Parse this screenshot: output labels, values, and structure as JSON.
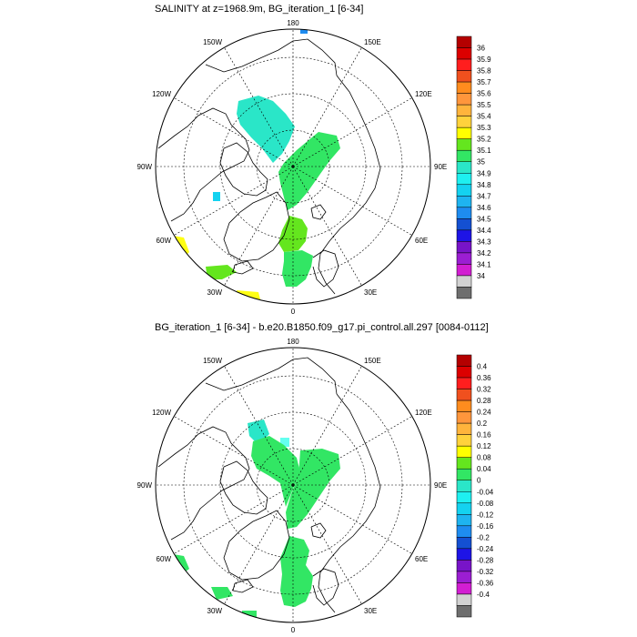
{
  "panels": [
    {
      "title": "SALINITY at z=1968.9m, BG_iteration_1 [6-34]",
      "colorbar_labels": [
        "36",
        "35.9",
        "35.8",
        "35.7",
        "35.6",
        "35.5",
        "35.4",
        "35.3",
        "35.2",
        "35.1",
        "35",
        "34.9",
        "34.8",
        "34.7",
        "34.6",
        "34.5",
        "34.4",
        "34.3",
        "34.2",
        "34.1",
        "34"
      ]
    },
    {
      "title": "BG_iteration_1 [6-34] - b.e20.B1850.f09_g17.pi_control.all.297 [0084-0112]",
      "colorbar_labels": [
        "0.4",
        "0.36",
        "0.32",
        "0.28",
        "0.24",
        "0.2",
        "0.16",
        "0.12",
        "0.08",
        "0.04",
        "0",
        "-0.04",
        "-0.08",
        "-0.12",
        "-0.16",
        "-0.2",
        "-0.24",
        "-0.28",
        "-0.32",
        "-0.36",
        "-0.4"
      ]
    }
  ],
  "longitude_labels": {
    "top": "180",
    "bottom": "0",
    "left": "90W",
    "right": "90E",
    "upper_left_far": "150W",
    "upper_left_near": "120W",
    "upper_right_far": "150E",
    "upper_right_near": "120E",
    "lower_left_near": "60W",
    "lower_left_far": "30W",
    "lower_right_near": "60E",
    "lower_right_far": "30E"
  },
  "colorbar_colors": [
    "#6e6e6e",
    "#d2d2d2",
    "#d21ed2",
    "#9b1ed2",
    "#7814c8",
    "#1e14e6",
    "#1450d2",
    "#1e8cf0",
    "#1eb4f0",
    "#14d2f0",
    "#1ef0f0",
    "#2ae6c8",
    "#32e664",
    "#64e61e",
    "#ffff00",
    "#ffd23c",
    "#ffb43c",
    "#ff963c",
    "#ff8c1e",
    "#f0501e",
    "#ff1e1e",
    "#dc0000",
    "#b40000"
  ],
  "field_colors": {
    "p1_cyan": "#2ae6c8",
    "p1_green": "#32e664",
    "p1_lime": "#64e61e",
    "p1_yellow": "#ffff14",
    "p1_blue": "#1e8cf0",
    "p1_teal": "#14d2f0",
    "p2_cyan": "#2ae6c8",
    "p2_green": "#32e664",
    "p2_lightcyan": "#64fff0"
  }
}
